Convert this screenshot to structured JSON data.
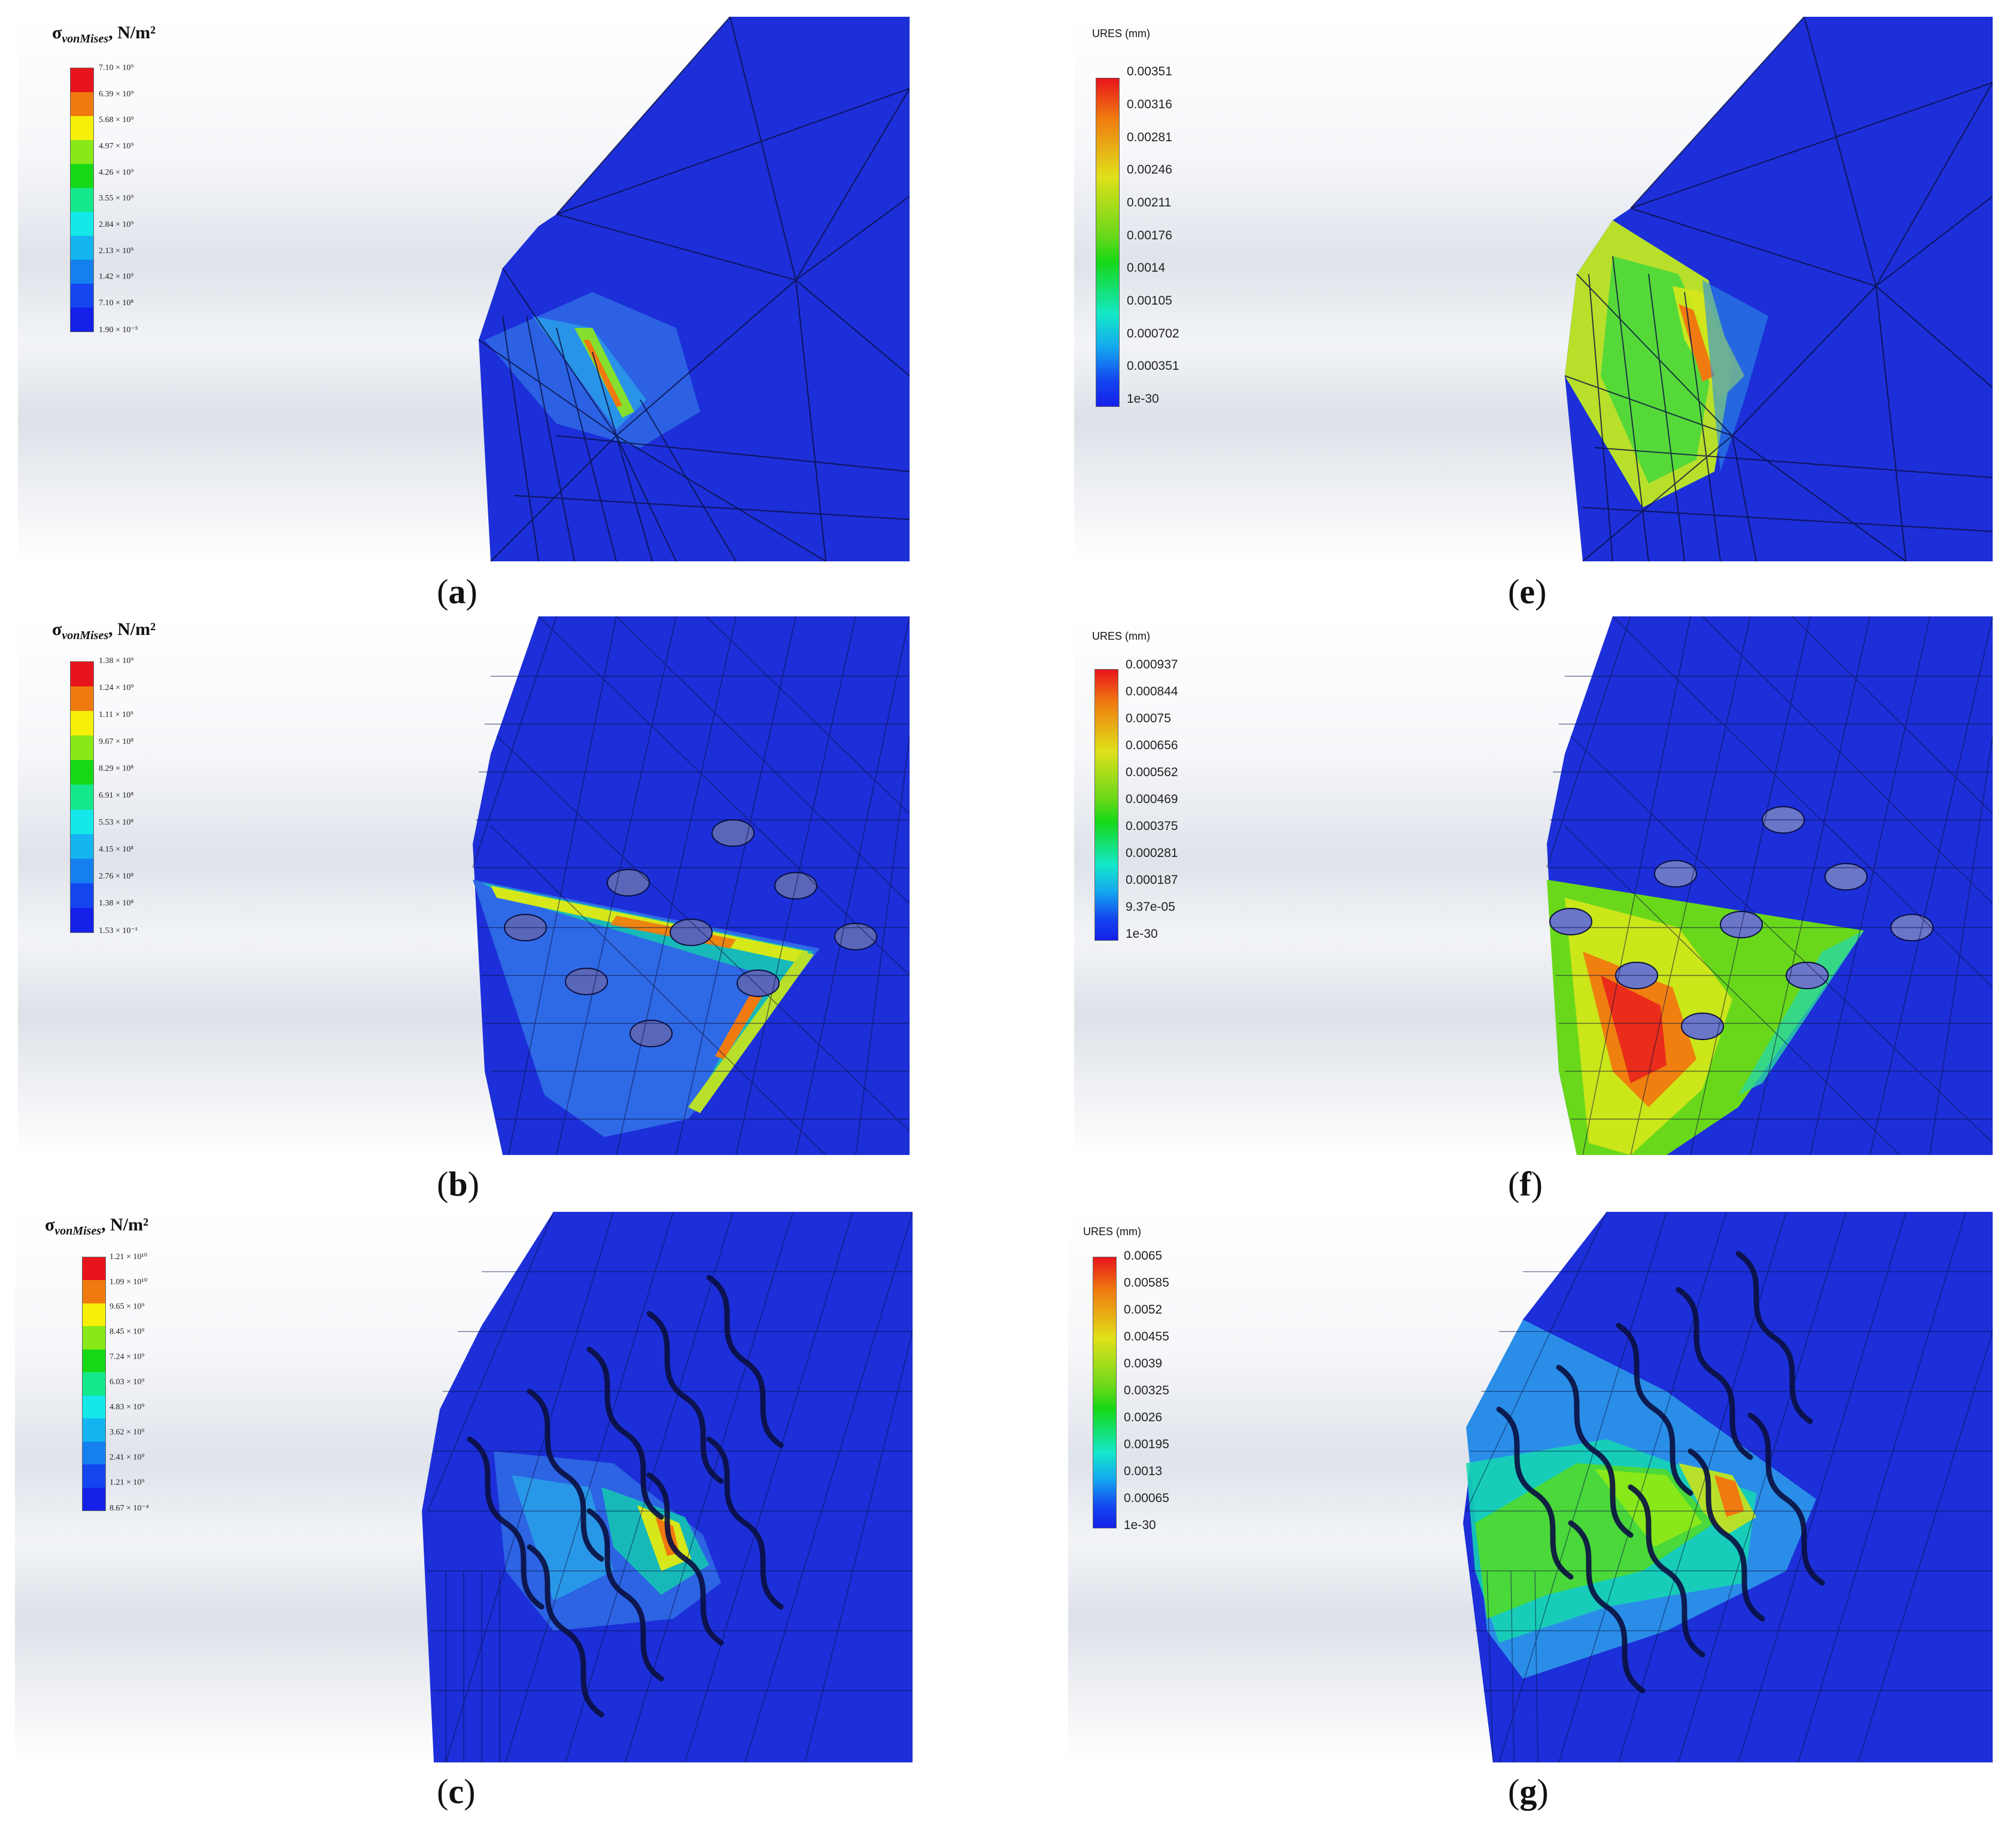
{
  "figure": {
    "panels": [
      {
        "id": "a",
        "caption": "a",
        "legend": {
          "title_main": "σ",
          "title_sub": "vonMises",
          "title_tail": ", N/m²",
          "ticks": [
            "7.10 × 10⁹",
            "6.39 × 10⁹",
            "5.68 × 10⁹",
            "4.97 × 10⁹",
            "4.26 × 10⁹",
            "3.55 × 10⁹",
            "2.84 × 10⁹",
            "2.13 × 10⁹",
            "1.42 × 10⁹",
            "7.10 × 10⁸",
            "1.90 × 10⁻⁵"
          ],
          "colors": [
            "#e8141c",
            "#f07a10",
            "#f5ef0a",
            "#88e81a",
            "#16d816",
            "#14e88a",
            "#14e8e8",
            "#14b4f0",
            "#1480f0",
            "#1446f0",
            "#1420e8"
          ]
        }
      },
      {
        "id": "b",
        "caption": "b",
        "legend": {
          "title_main": "σ",
          "title_sub": "vonMises",
          "title_tail": ", N/m²",
          "ticks": [
            "1.38 × 10⁹",
            "1.24 × 10⁹",
            "1.11 × 10⁹",
            "9.67 × 10⁸",
            "8.29 × 10⁸",
            "6.91 × 10⁸",
            "5.53 × 10⁸",
            "4.15 × 10⁸",
            "2.76 × 10⁸",
            "1.38 × 10⁸",
            "1.53 × 10⁻¹"
          ],
          "colors": [
            "#e8141c",
            "#f07a10",
            "#f5ef0a",
            "#88e81a",
            "#16d816",
            "#14e88a",
            "#14e8e8",
            "#14b4f0",
            "#1480f0",
            "#1446f0",
            "#1420e8"
          ]
        }
      },
      {
        "id": "c",
        "caption": "c",
        "legend": {
          "title_main": "σ",
          "title_sub": "vonMises",
          "title_tail": ", N/m²",
          "ticks": [
            "1.21 × 10¹⁰",
            "1.09 × 10¹⁰",
            "9.65 × 10⁹",
            "8.45 × 10⁹",
            "7.24 × 10⁹",
            "6.03 × 10⁹",
            "4.83 × 10⁹",
            "3.62 × 10⁹",
            "2.41 × 10⁹",
            "1.21 × 10⁹",
            "8.67 × 10⁻⁴"
          ],
          "colors": [
            "#e8141c",
            "#f07a10",
            "#f5ef0a",
            "#88e81a",
            "#16d816",
            "#14e88a",
            "#14e8e8",
            "#14b4f0",
            "#1480f0",
            "#1446f0",
            "#1420e8"
          ]
        }
      },
      {
        "id": "e",
        "caption": "e",
        "legend": {
          "title": "URES (mm)",
          "ticks": [
            "0.00351",
            "0.00316",
            "0.00281",
            "0.00246",
            "0.00211",
            "0.00176",
            "0.0014",
            "0.00105",
            "0.000702",
            "0.000351",
            "1e-30"
          ]
        }
      },
      {
        "id": "f",
        "caption": "f",
        "legend": {
          "title": "URES (mm)",
          "ticks": [
            "0.000937",
            "0.000844",
            "0.00075",
            "0.000656",
            "0.000562",
            "0.000469",
            "0.000375",
            "0.000281",
            "0.000187",
            "9.37e-05",
            "1e-30"
          ]
        }
      },
      {
        "id": "g",
        "caption": "g",
        "legend": {
          "title": "URES (mm)",
          "ticks": [
            "0.0065",
            "0.00585",
            "0.0052",
            "0.00455",
            "0.0039",
            "0.00325",
            "0.0026",
            "0.00195",
            "0.0013",
            "0.00065",
            "1e-30"
          ]
        }
      }
    ],
    "colors": {
      "model_blue": "#1c2fd8",
      "mesh_line": "#0a0f40",
      "caption_text": "#111111"
    }
  }
}
